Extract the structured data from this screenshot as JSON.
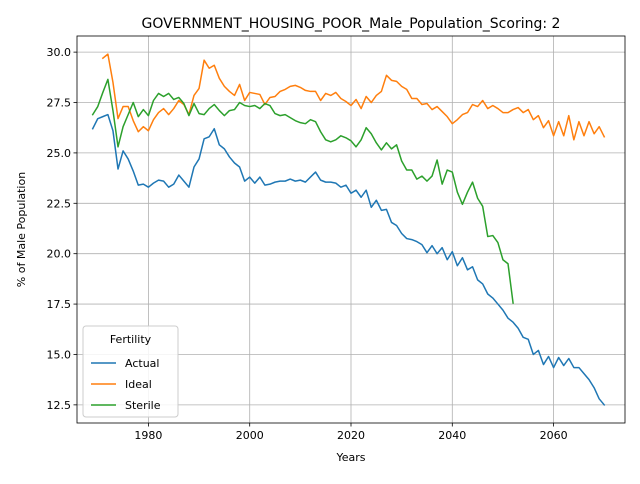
{
  "chart_data": {
    "type": "line",
    "title": "GOVERNMENT_HOUSING_POOR_Male_Population_Scoring: 2",
    "xlabel": "Years",
    "ylabel": "% of Male Population",
    "xlim": [
      1965.9,
      2074.1
    ],
    "ylim": [
      11.6,
      30.8
    ],
    "xticks": [
      1980,
      2000,
      2020,
      2040,
      2060
    ],
    "yticks": [
      12.5,
      15.0,
      17.5,
      20.0,
      22.5,
      25.0,
      27.5,
      30.0
    ],
    "grid": true,
    "legend": {
      "title": "Fertility",
      "position": "lower-left"
    },
    "series": [
      {
        "name": "Actual",
        "color": "#1f77b4",
        "x": [
          1969,
          1970,
          1971,
          1972,
          1973,
          1974,
          1975,
          1976,
          1977,
          1978,
          1979,
          1980,
          1981,
          1982,
          1983,
          1984,
          1985,
          1986,
          1987,
          1988,
          1989,
          1990,
          1991,
          1992,
          1993,
          1994,
          1995,
          1996,
          1997,
          1998,
          1999,
          2000,
          2001,
          2002,
          2003,
          2004,
          2005,
          2006,
          2007,
          2008,
          2009,
          2010,
          2011,
          2012,
          2013,
          2014,
          2015,
          2016,
          2017,
          2018,
          2019,
          2020,
          2021,
          2022,
          2023,
          2024,
          2025,
          2026,
          2027,
          2028,
          2029,
          2030,
          2031,
          2032,
          2033,
          2034,
          2035,
          2036,
          2037,
          2038,
          2039,
          2040,
          2041,
          2042,
          2043,
          2044,
          2045,
          2046,
          2047,
          2048,
          2049,
          2050,
          2051,
          2052,
          2053,
          2054,
          2055,
          2056,
          2057,
          2058,
          2059,
          2060,
          2061,
          2062,
          2063,
          2064,
          2065,
          2066,
          2067,
          2068,
          2069,
          2070
        ],
        "values": [
          26.2,
          26.7,
          26.8,
          26.9,
          26.1,
          24.2,
          25.1,
          24.7,
          24.1,
          23.4,
          23.45,
          23.3,
          23.5,
          23.65,
          23.6,
          23.3,
          23.45,
          23.9,
          23.6,
          23.3,
          24.3,
          24.7,
          25.7,
          25.8,
          26.2,
          25.4,
          25.2,
          24.8,
          24.5,
          24.3,
          23.6,
          23.8,
          23.5,
          23.8,
          23.4,
          23.45,
          23.55,
          23.6,
          23.6,
          23.7,
          23.6,
          23.65,
          23.55,
          23.8,
          24.05,
          23.65,
          23.55,
          23.55,
          23.5,
          23.3,
          23.4,
          23.0,
          23.15,
          22.8,
          23.15,
          22.3,
          22.65,
          22.15,
          22.2,
          21.55,
          21.4,
          21.0,
          20.75,
          20.7,
          20.6,
          20.45,
          20.05,
          20.4,
          20.0,
          20.3,
          19.7,
          20.1,
          19.4,
          19.8,
          19.2,
          19.35,
          18.7,
          18.5,
          18.0,
          17.8,
          17.5,
          17.2,
          16.8,
          16.6,
          16.3,
          15.85,
          15.75,
          15.0,
          15.2,
          14.5,
          14.9,
          14.35,
          14.85,
          14.45,
          14.8,
          14.35,
          14.35,
          14.05,
          13.75,
          13.35,
          12.8,
          12.5
        ]
      },
      {
        "name": "Ideal",
        "color": "#ff7f0e",
        "x": [
          1971,
          1972,
          1973,
          1974,
          1975,
          1976,
          1977,
          1978,
          1979,
          1980,
          1981,
          1982,
          1983,
          1984,
          1985,
          1986,
          1987,
          1988,
          1989,
          1990,
          1991,
          1992,
          1993,
          1994,
          1995,
          1996,
          1997,
          1998,
          1999,
          2000,
          2001,
          2002,
          2003,
          2004,
          2005,
          2006,
          2007,
          2008,
          2009,
          2010,
          2011,
          2012,
          2013,
          2014,
          2015,
          2016,
          2017,
          2018,
          2019,
          2020,
          2021,
          2022,
          2023,
          2024,
          2025,
          2026,
          2027,
          2028,
          2029,
          2030,
          2031,
          2032,
          2033,
          2034,
          2035,
          2036,
          2037,
          2038,
          2039,
          2040,
          2041,
          2042,
          2043,
          2044,
          2045,
          2046,
          2047,
          2048,
          2049,
          2050,
          2051,
          2052,
          2053,
          2054,
          2055,
          2056,
          2057,
          2058,
          2059,
          2060,
          2061,
          2062,
          2063,
          2064,
          2065,
          2066,
          2067,
          2068,
          2069,
          2070
        ],
        "values": [
          29.7,
          29.9,
          28.5,
          26.7,
          27.3,
          27.3,
          26.6,
          26.05,
          26.3,
          26.1,
          26.65,
          27.0,
          27.2,
          26.9,
          27.2,
          27.6,
          27.4,
          26.9,
          27.85,
          28.2,
          29.6,
          29.2,
          29.35,
          28.7,
          28.3,
          28.05,
          27.85,
          28.4,
          27.6,
          28.0,
          27.95,
          27.9,
          27.4,
          27.75,
          27.8,
          28.05,
          28.15,
          28.3,
          28.35,
          28.25,
          28.1,
          28.05,
          28.05,
          27.6,
          27.95,
          27.85,
          28.0,
          27.7,
          27.55,
          27.35,
          27.65,
          27.2,
          27.8,
          27.5,
          27.85,
          28.05,
          28.85,
          28.6,
          28.55,
          28.3,
          28.15,
          27.7,
          27.7,
          27.4,
          27.45,
          27.15,
          27.3,
          27.05,
          26.8,
          26.45,
          26.65,
          26.9,
          27.0,
          27.4,
          27.3,
          27.6,
          27.2,
          27.35,
          27.2,
          27.0,
          27.0,
          27.15,
          27.25,
          27.0,
          27.15,
          26.65,
          26.85,
          26.25,
          26.6,
          25.85,
          26.55,
          25.85,
          26.85,
          25.65,
          26.55,
          25.85,
          26.55,
          25.95,
          26.3,
          25.8
        ]
      },
      {
        "name": "Sterile",
        "color": "#2ca02c",
        "x": [
          1969,
          1970,
          1971,
          1972,
          1973,
          1974,
          1975,
          1976,
          1977,
          1978,
          1979,
          1980,
          1981,
          1982,
          1983,
          1984,
          1985,
          1986,
          1987,
          1988,
          1989,
          1990,
          1991,
          1992,
          1993,
          1994,
          1995,
          1996,
          1997,
          1998,
          1999,
          2000,
          2001,
          2002,
          2003,
          2004,
          2005,
          2006,
          2007,
          2008,
          2009,
          2010,
          2011,
          2012,
          2013,
          2014,
          2015,
          2016,
          2017,
          2018,
          2019,
          2020,
          2021,
          2022,
          2023,
          2024,
          2025,
          2026,
          2027,
          2028,
          2029,
          2030,
          2031,
          2032,
          2033,
          2034,
          2035,
          2036,
          2037,
          2038,
          2039,
          2040,
          2041,
          2042,
          2043,
          2044,
          2045,
          2046,
          2047,
          2048,
          2049,
          2050,
          2051,
          2052
        ],
        "values": [
          26.9,
          27.3,
          28.0,
          28.65,
          27.1,
          25.3,
          26.3,
          26.9,
          27.5,
          26.8,
          27.15,
          26.85,
          27.6,
          27.95,
          27.8,
          27.95,
          27.65,
          27.75,
          27.45,
          26.85,
          27.45,
          26.95,
          26.9,
          27.2,
          27.4,
          27.1,
          26.85,
          27.1,
          27.15,
          27.5,
          27.35,
          27.3,
          27.35,
          27.2,
          27.45,
          27.35,
          26.95,
          26.85,
          26.9,
          26.75,
          26.6,
          26.5,
          26.45,
          26.65,
          26.55,
          26.05,
          25.65,
          25.55,
          25.65,
          25.85,
          25.75,
          25.6,
          25.3,
          25.65,
          26.25,
          25.95,
          25.5,
          25.15,
          25.5,
          25.2,
          25.4,
          24.6,
          24.15,
          24.15,
          23.7,
          23.85,
          23.6,
          23.85,
          24.65,
          23.45,
          24.15,
          24.05,
          23.05,
          22.45,
          23.05,
          23.55,
          22.75,
          22.35,
          20.85,
          20.9,
          20.55,
          19.7,
          19.5,
          17.55
        ]
      }
    ]
  }
}
